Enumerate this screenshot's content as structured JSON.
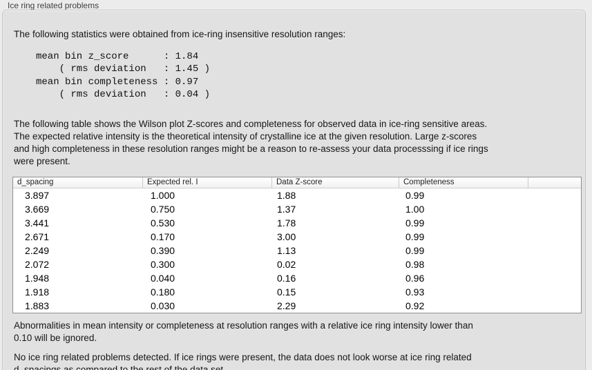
{
  "panel": {
    "title": "Ice ring related problems"
  },
  "sections": {
    "intro": "The following statistics were obtained from ice-ring insensitive resolution ranges:",
    "stats_block": "mean bin z_score      : 1.84\n    ( rms deviation   : 1.45 )\nmean bin completeness : 0.97\n    ( rms deviation   : 0.04 )",
    "table_description": "The following table shows the Wilson plot Z-scores and completeness for observed data in ice-ring sensitive areas.\nThe expected relative intensity is the theoretical intensity of crystalline ice at the given resolution. Large z-scores\nand high completeness in these resolution ranges might be a reason to re-assess your data processsing if ice rings\nwere present.",
    "ignore_note": "Abnormalities in mean intensity or completeness at resolution ranges with a relative ice ring intensity lower than\n0.10 will be ignored.",
    "conclusion": "No ice ring related problems detected. If ice rings were present, the data does not look worse at ice ring related\nd_spacings as compared to the rest of the data set."
  },
  "stats": {
    "mean_bin_z_score": "1.84",
    "z_score_rms_deviation": "1.45",
    "mean_bin_completeness": "0.97",
    "completeness_rms_deviation": "0.04"
  },
  "table": {
    "columns": [
      "d_spacing",
      "Expected rel. I",
      "Data Z-score",
      "Completeness",
      ""
    ],
    "rows": [
      [
        "3.897",
        "1.000",
        "1.88",
        "0.99"
      ],
      [
        "3.669",
        "0.750",
        "1.37",
        "1.00"
      ],
      [
        "3.441",
        "0.530",
        "1.78",
        "0.99"
      ],
      [
        "2.671",
        "0.170",
        "3.00",
        "0.99"
      ],
      [
        "2.249",
        "0.390",
        "1.13",
        "0.99"
      ],
      [
        "2.072",
        "0.300",
        "0.02",
        "0.98"
      ],
      [
        "1.948",
        "0.040",
        "0.16",
        "0.96"
      ],
      [
        "1.918",
        "0.180",
        "0.15",
        "0.93"
      ],
      [
        "1.883",
        "0.030",
        "2.29",
        "0.92"
      ]
    ]
  },
  "colors": {
    "outer_background": "#ececec",
    "panel_background": "#e1e1e1",
    "panel_border": "#c6c6c6",
    "table_border": "#8f8f8f",
    "table_row_background": "#ffffff",
    "text": "#161616"
  }
}
